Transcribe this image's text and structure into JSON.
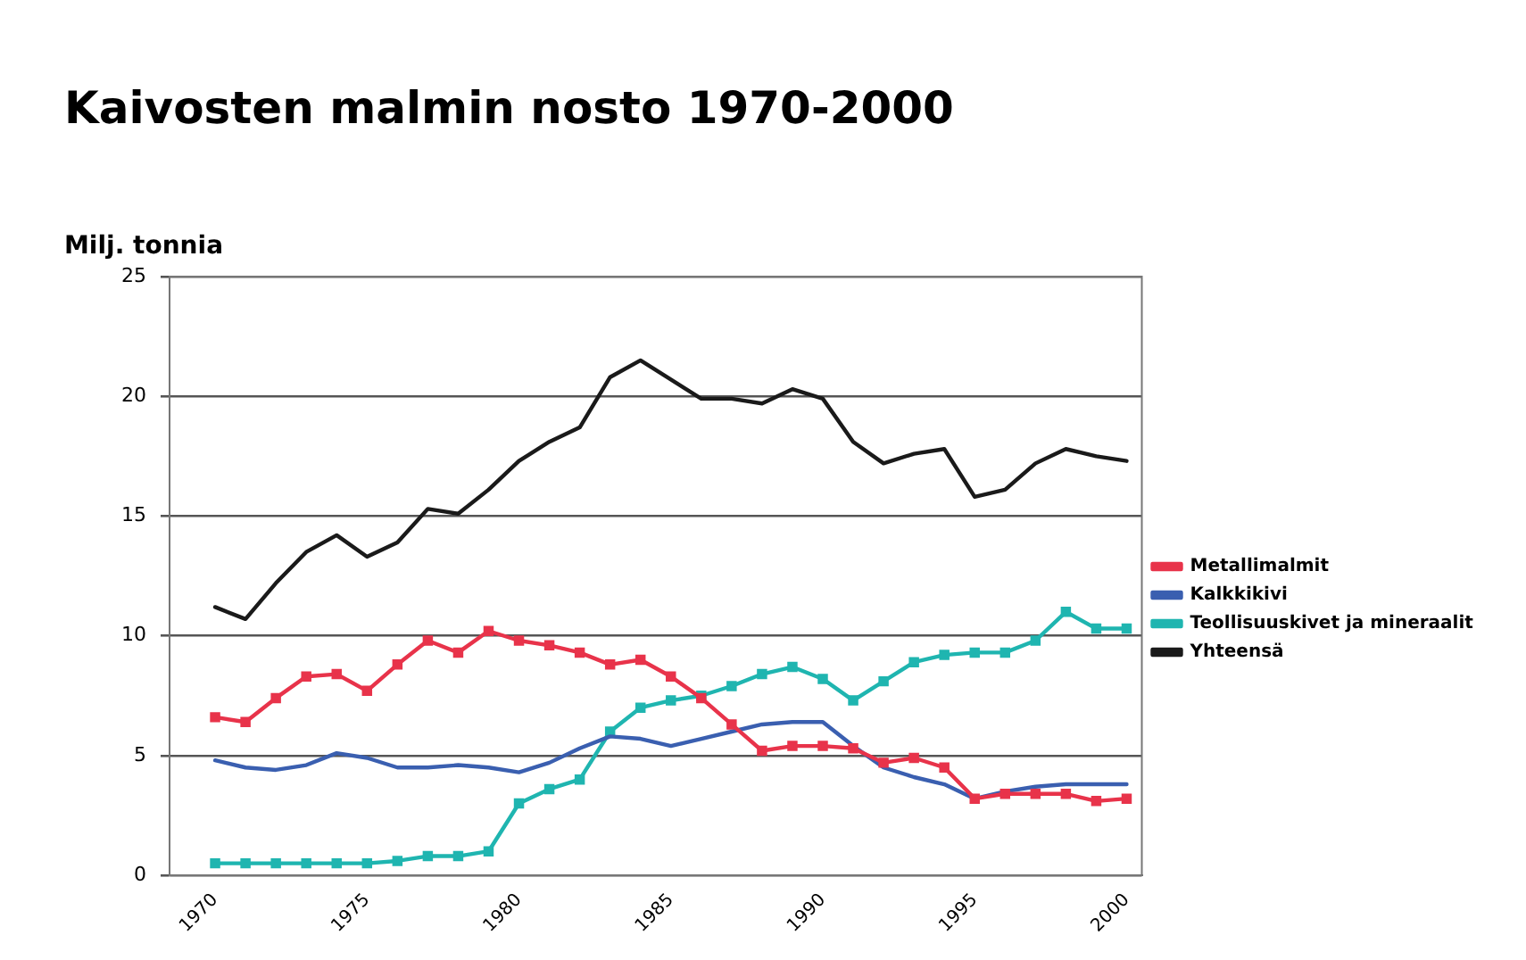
{
  "chart_data": {
    "type": "line",
    "title": "Kaivosten malmin nosto 1970-2000",
    "ylabel": "Milj. tonnia",
    "x": [
      1970,
      1971,
      1972,
      1973,
      1974,
      1975,
      1976,
      1977,
      1978,
      1979,
      1980,
      1981,
      1982,
      1983,
      1984,
      1985,
      1986,
      1987,
      1988,
      1989,
      1990,
      1991,
      1992,
      1993,
      1994,
      1995,
      1996,
      1997,
      1998,
      1999,
      2000
    ],
    "series": [
      {
        "name": "Metallimalmit",
        "color": "#e8334a",
        "marker": "square",
        "values": [
          6.6,
          6.4,
          7.4,
          8.3,
          8.4,
          7.7,
          8.8,
          9.8,
          9.3,
          10.2,
          9.8,
          9.6,
          9.3,
          8.8,
          9.0,
          8.3,
          7.4,
          6.3,
          5.2,
          5.4,
          5.4,
          5.3,
          4.7,
          4.9,
          4.5,
          3.2,
          3.4,
          3.4,
          3.4,
          3.1,
          3.2
        ]
      },
      {
        "name": "Kalkkikivi",
        "color": "#3a5fb0",
        "marker": "none",
        "values": [
          4.8,
          4.5,
          4.4,
          4.6,
          5.1,
          4.9,
          4.5,
          4.5,
          4.6,
          4.5,
          4.3,
          4.7,
          5.3,
          5.8,
          5.7,
          5.4,
          5.7,
          6.0,
          6.3,
          6.4,
          6.4,
          5.4,
          4.5,
          4.1,
          3.8,
          3.2,
          3.5,
          3.7,
          3.8,
          3.8,
          3.8
        ]
      },
      {
        "name": "Teollisuuskivet ja mineraalit",
        "color": "#1fb5b0",
        "marker": "square",
        "values": [
          0.5,
          0.5,
          0.5,
          0.5,
          0.5,
          0.5,
          0.6,
          0.8,
          0.8,
          1.0,
          3.0,
          3.6,
          4.0,
          6.0,
          7.0,
          7.3,
          7.5,
          7.9,
          8.4,
          8.7,
          8.2,
          7.3,
          8.1,
          8.9,
          9.2,
          9.3,
          9.3,
          9.8,
          11.0,
          10.3,
          10.3
        ]
      },
      {
        "name": "Yhteensä",
        "color": "#1a1a1a",
        "marker": "none",
        "values": [
          11.2,
          10.7,
          12.2,
          13.5,
          14.2,
          13.3,
          13.9,
          15.3,
          15.1,
          16.1,
          17.3,
          18.1,
          18.7,
          20.8,
          21.5,
          20.7,
          19.9,
          19.9,
          19.7,
          20.3,
          19.9,
          18.1,
          17.2,
          17.6,
          17.8,
          15.8,
          16.1,
          17.2,
          17.8,
          17.5,
          17.3
        ]
      }
    ],
    "xlim": [
      1968.5,
      2000.5
    ],
    "xticks": [
      1970,
      1975,
      1980,
      1985,
      1990,
      1995,
      2000
    ],
    "ylim": [
      0,
      25
    ],
    "yticks": [
      0,
      5,
      10,
      15,
      20,
      25
    ],
    "grid": "y",
    "legend": "right",
    "line_style": "solid"
  }
}
